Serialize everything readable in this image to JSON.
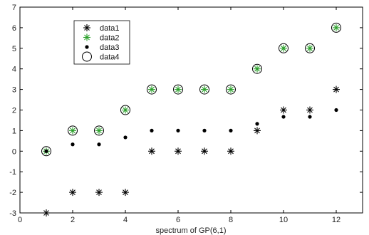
{
  "chart_data": {
    "type": "scatter",
    "xlabel": "spectrum of GP(6,1)",
    "ylabel": "",
    "xlim": [
      0,
      13
    ],
    "ylim": [
      -3,
      7
    ],
    "xticks": [
      0,
      2,
      4,
      6,
      8,
      10,
      12
    ],
    "yticks": [
      -3,
      -2,
      -1,
      0,
      1,
      2,
      3,
      4,
      5,
      6,
      7
    ],
    "grid": false,
    "legend_position": "top-left",
    "series": [
      {
        "name": "data1",
        "marker": "asterisk",
        "color": "#000000",
        "x": [
          1,
          2,
          3,
          4,
          5,
          6,
          7,
          8,
          9,
          10,
          11,
          12
        ],
        "y": [
          -3,
          -2,
          -2,
          -2,
          0,
          0,
          0,
          0,
          1,
          2,
          2,
          3
        ]
      },
      {
        "name": "data2",
        "marker": "asterisk",
        "color": "#2aa02a",
        "x": [
          1,
          2,
          3,
          4,
          5,
          6,
          7,
          8,
          9,
          10,
          11,
          12
        ],
        "y": [
          0,
          1,
          1,
          2,
          3,
          3,
          3,
          3,
          4,
          5,
          5,
          6
        ]
      },
      {
        "name": "data3",
        "marker": "dot",
        "color": "#000000",
        "x": [
          1,
          2,
          3,
          4,
          5,
          6,
          7,
          8,
          9,
          10,
          11,
          12
        ],
        "y": [
          0,
          0.33,
          0.33,
          0.67,
          1,
          1,
          1,
          1,
          1.33,
          1.67,
          1.67,
          2
        ]
      },
      {
        "name": "data4",
        "marker": "circle",
        "color": "#000000",
        "x": [
          1,
          2,
          3,
          4,
          5,
          6,
          7,
          8,
          9,
          10,
          11,
          12
        ],
        "y": [
          0,
          1,
          1,
          2,
          3,
          3,
          3,
          3,
          4,
          5,
          5,
          6
        ]
      }
    ]
  }
}
